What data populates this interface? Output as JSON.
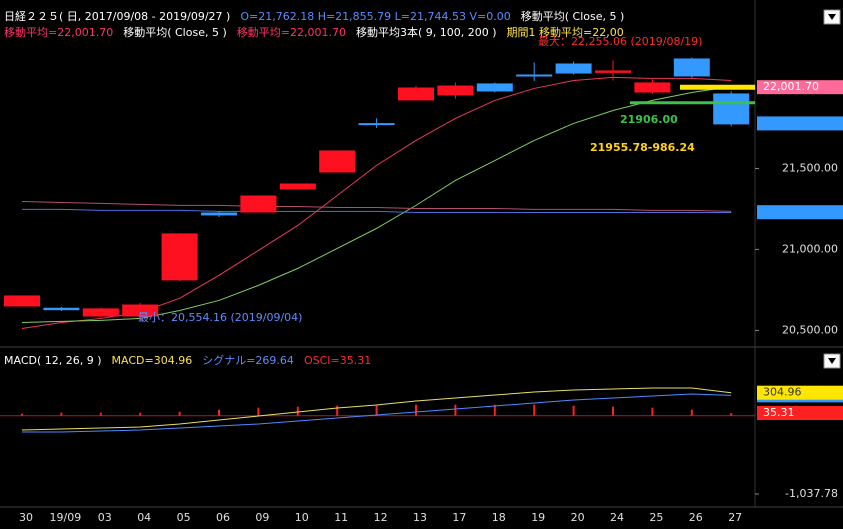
{
  "chart_data": [
    {
      "type": "candlestick",
      "header": [
        [
          {
            "text": "日経２２５( 日, 2017/09/08 - 2019/09/27 )",
            "color": "#ffffff"
          },
          {
            "text": "O=21,762.18 H=21,855.79 L=21,744.53 V=0.00",
            "color": "#5b8cff"
          },
          {
            "text": "移動平均( Close, 5 )",
            "color": "#ffffff"
          }
        ],
        [
          {
            "text": "移動平均=22,001.70",
            "color": "#ff3366"
          },
          {
            "text": "移動平均( Close, 5 )",
            "color": "#ffffff"
          },
          {
            "text": "移動平均=22,001.70",
            "color": "#ff3366"
          },
          {
            "text": "移動平均3本( 9, 100, 200 )",
            "color": "#ffffff"
          },
          {
            "text": "期間1 移動平均=22,00",
            "color": "#ffe14d"
          }
        ]
      ],
      "annotations": [
        {
          "text": "最大：22,255.06 (2019/08/19)",
          "color": "#ff2a2a"
        },
        {
          "text": "最小：20,554.16 (2019/09/04)",
          "color": "#5b8cff"
        },
        {
          "text": "21906.00",
          "color": "#3cc24a"
        },
        {
          "text": "21955.78-986.24",
          "color": "#ffd21a"
        }
      ],
      "categories": [
        "30",
        "19/09",
        "03",
        "04",
        "05",
        "06",
        "09",
        "10",
        "11",
        "12",
        "13",
        "17",
        "18",
        "19",
        "20",
        "24",
        "25",
        "26",
        "27"
      ],
      "open": [
        20648,
        20640,
        20586,
        20586,
        20809,
        21228,
        21228,
        21370,
        21475,
        21780,
        21920,
        21951,
        22025,
        22080,
        22148,
        22090,
        21969,
        22179,
        21963
      ],
      "high": [
        20716,
        20645,
        20640,
        20670,
        21100,
        21235,
        21333,
        21407,
        21611,
        21810,
        22010,
        22030,
        22030,
        22155,
        22160,
        22167,
        22050,
        22185,
        21975
      ],
      "low": [
        20648,
        20620,
        20580,
        20554,
        20805,
        21200,
        21228,
        21370,
        21475,
        21750,
        21920,
        21930,
        21970,
        22040,
        22080,
        22043,
        21960,
        22060,
        21760
      ],
      "close": [
        20716,
        20625,
        20636,
        20660,
        21099,
        21210,
        21333,
        21407,
        21611,
        21775,
        22000,
        22012,
        21975,
        22070,
        22086,
        22105,
        22031,
        22068,
        21772
      ],
      "up_color": "#ff1020",
      "down_color": "#3399ff",
      "ma": [
        {
          "color": "#e83a5a",
          "values": [
            20512,
            20549,
            20574,
            20611,
            20698,
            20840,
            20994,
            21148,
            21333,
            21519,
            21673,
            21809,
            21920,
            21994,
            22043,
            22062,
            22056,
            22056,
            22043
          ]
        },
        {
          "color": "#7fcf5f",
          "values": [
            20549,
            20556,
            20562,
            20574,
            20623,
            20685,
            20778,
            20883,
            21006,
            21130,
            21272,
            21426,
            21549,
            21673,
            21778,
            21858,
            21920,
            21969,
            22006
          ]
        },
        {
          "color": "#b0506a",
          "values": [
            21296,
            21290,
            21284,
            21278,
            21272,
            21272,
            21265,
            21265,
            21259,
            21259,
            21253,
            21253,
            21253,
            21247,
            21247,
            21247,
            21241,
            21241,
            21235
          ]
        },
        {
          "color": "#4a6fd8",
          "values": [
            21247,
            21247,
            21241,
            21241,
            21241,
            21235,
            21235,
            21235,
            21235,
            21235,
            21228,
            21228,
            21228,
            21228,
            21228,
            21228,
            21228,
            21228,
            21228
          ]
        }
      ],
      "ref_lines": [
        {
          "value": 21906,
          "color": "#3cc24a"
        },
        {
          "value": 22001.7,
          "color": "#ffe600"
        }
      ],
      "price_boxes": [
        {
          "value": 22001.7,
          "label": "22,001.70",
          "color": "#ff6a9a",
          "text_color": "#ffffff"
        },
        {
          "value": 21778,
          "color": "#3399ff"
        },
        {
          "value": 21230,
          "color": "#3399ff"
        }
      ],
      "ylim": [
        20410,
        22540
      ],
      "yticks": [
        {
          "value": 20500,
          "label": "20,500.00"
        },
        {
          "value": 21000,
          "label": "21,000.00"
        },
        {
          "value": 21500,
          "label": "21,500.00"
        }
      ]
    },
    {
      "type": "macd",
      "header": [
        [
          {
            "text": "MACD( 12, 26, 9 )",
            "color": "#ffffff"
          },
          {
            "text": "MACD=304.96",
            "color": "#ffe14d"
          },
          {
            "text": "シグナル=269.64",
            "color": "#5b8cff"
          },
          {
            "text": "OSCI=35.31",
            "color": "#ff2a2a"
          }
        ]
      ],
      "series": [
        {
          "color": "#e8e060",
          "values": [
            -190,
            -176,
            -163,
            -150,
            -110,
            -57,
            -4,
            49,
            102,
            142,
            195,
            235,
            274,
            314,
            341,
            354,
            367,
            367,
            304.96
          ]
        },
        {
          "color": "#4a8cff",
          "values": [
            -216,
            -216,
            -203,
            -190,
            -163,
            -137,
            -110,
            -70,
            -31,
            9,
            49,
            89,
            129,
            168,
            208,
            235,
            261,
            288,
            269.64
          ]
        }
      ],
      "osci": {
        "color": "#ff2020",
        "values": [
          26,
          40,
          40,
          40,
          53,
          80,
          106,
          119,
          133,
          133,
          146,
          146,
          145,
          146,
          133,
          119,
          106,
          79,
          35.31
        ]
      },
      "price_boxes": [
        {
          "value": 269.64,
          "color": "#3399ff"
        },
        {
          "value": 304.96,
          "label": "304.96",
          "color": "#ffe600",
          "text_color": "#333333"
        },
        {
          "value": 35.31,
          "label": "35.31",
          "color": "#ff2020",
          "text_color": "#ffffff"
        }
      ],
      "ylim": [
        -1184,
        871
      ],
      "yticks": [
        {
          "value": -1037.78,
          "label": "-1,037.78"
        }
      ]
    }
  ]
}
